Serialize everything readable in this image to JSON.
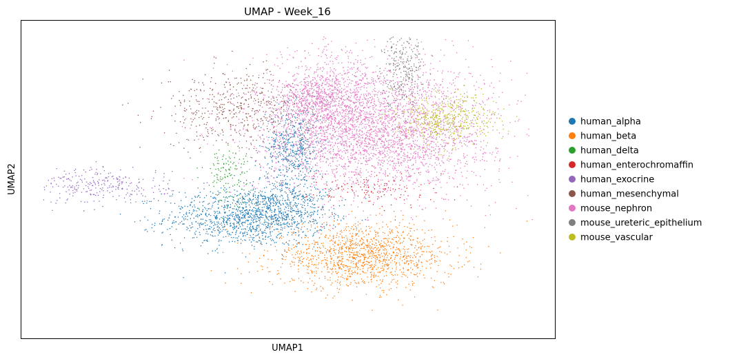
{
  "chart_data": {
    "type": "scatter",
    "title": "UMAP - Week_16",
    "xlabel": "UMAP1",
    "ylabel": "UMAP2",
    "xlim": [
      0,
      100
    ],
    "ylim": [
      0,
      100
    ],
    "ticks": "none",
    "grid": false,
    "legend_placement": "right-outside",
    "series": [
      {
        "name": "human_alpha",
        "color": "#1f77b4",
        "clusters": [
          {
            "cx": 42,
            "cy": 38,
            "sx": 7.5,
            "sy": 4.5,
            "n": 1100
          },
          {
            "cx": 51,
            "cy": 60,
            "sx": 2.6,
            "sy": 6.5,
            "n": 500
          },
          {
            "cx": 49,
            "cy": 42,
            "sx": 4.5,
            "sy": 5,
            "n": 400
          }
        ]
      },
      {
        "name": "human_beta",
        "color": "#ff7f0e",
        "clusters": [
          {
            "cx": 64,
            "cy": 26,
            "sx": 8.5,
            "sy": 5,
            "n": 1300
          }
        ]
      },
      {
        "name": "human_delta",
        "color": "#2ca02c",
        "clusters": [
          {
            "cx": 38.5,
            "cy": 52,
            "sx": 2.2,
            "sy": 4.5,
            "n": 130
          }
        ]
      },
      {
        "name": "human_enterochromaffin",
        "color": "#d62728",
        "clusters": [
          {
            "cx": 66,
            "cy": 47,
            "sx": 6,
            "sy": 3,
            "n": 130
          }
        ]
      },
      {
        "name": "human_exocrine",
        "color": "#9467bd",
        "clusters": [
          {
            "cx": 15,
            "cy": 48,
            "sx": 6.5,
            "sy": 2.8,
            "n": 280
          }
        ]
      },
      {
        "name": "human_mesenchymal",
        "color": "#8c564b",
        "clusters": [
          {
            "cx": 40.5,
            "cy": 72,
            "sx": 7,
            "sy": 6,
            "n": 500
          }
        ]
      },
      {
        "name": "mouse_nephron",
        "color": "#e377c2",
        "clusters": [
          {
            "cx": 66,
            "cy": 66,
            "sx": 11,
            "sy": 10,
            "n": 3500
          },
          {
            "cx": 58,
            "cy": 78,
            "sx": 3.5,
            "sy": 9,
            "n": 350
          },
          {
            "cx": 55,
            "cy": 75,
            "sx": 3.5,
            "sy": 3.5,
            "n": 400
          }
        ]
      },
      {
        "name": "mouse_ureteric_epithelium",
        "color": "#7f7f7f",
        "clusters": [
          {
            "cx": 71.5,
            "cy": 86,
            "sx": 2,
            "sy": 6.5,
            "n": 280
          }
        ]
      },
      {
        "name": "mouse_vascular",
        "color": "#bcbd22",
        "clusters": [
          {
            "cx": 80,
            "cy": 69,
            "sx": 4.5,
            "sy": 4,
            "n": 450
          }
        ]
      }
    ]
  }
}
